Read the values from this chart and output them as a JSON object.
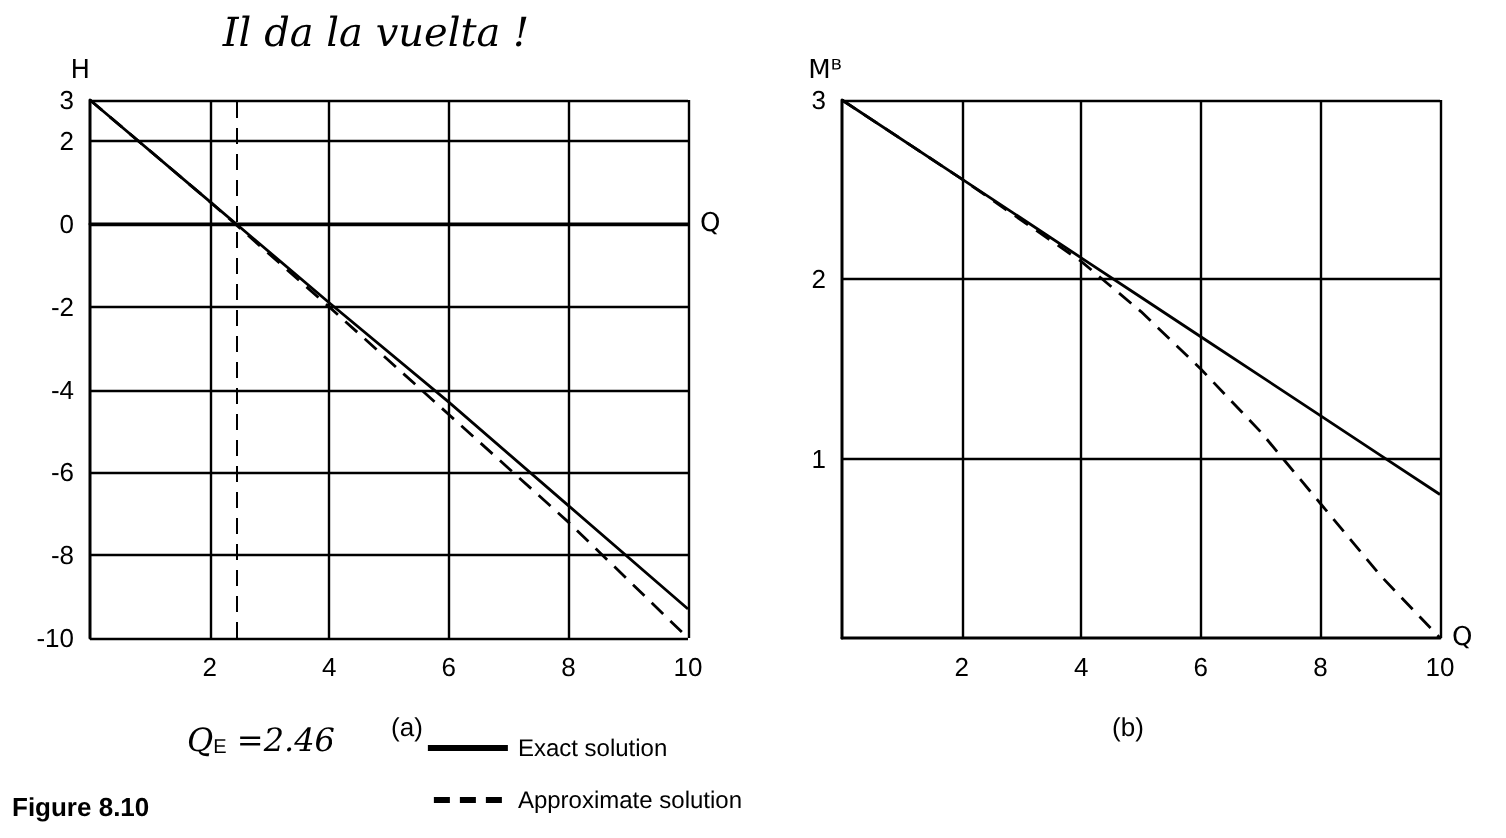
{
  "chart_data": [
    {
      "type": "line",
      "xlabel": "Q",
      "ylabel": "H",
      "x": [
        0,
        2,
        4,
        6,
        8,
        10
      ],
      "xlim": [
        0,
        10
      ],
      "xticks": [
        2,
        4,
        6,
        8,
        10
      ],
      "ylim": [
        -10,
        3
      ],
      "yticks": [
        -10,
        -8,
        -6,
        -4,
        -2,
        0,
        2,
        3
      ],
      "grid": true,
      "legend": "bottom right",
      "series": [
        {
          "name": "Exact solution",
          "color": "#000000",
          "line_style": "solid",
          "values": [
            3,
            0.55,
            -1.9,
            -4.3,
            -6.8,
            -9.3
          ]
        },
        {
          "name": "Approximate solution",
          "color": "#000000",
          "line_style": "dashed",
          "values": [
            3,
            0.55,
            -2,
            -4.6,
            -7.2,
            -10
          ]
        }
      ],
      "ref_lines": [
        {
          "axis": "x",
          "value": 2.46,
          "line_style": "dashed",
          "color": "#000000"
        }
      ],
      "annotations": [
        "Il da la vuelta !",
        "(a)",
        "Figure 8.10",
        {
          "text": "Q$_{E}$ =2.46",
          "x": 2.46,
          "y": -10
        }
      ]
    },
    {
      "type": "line",
      "xlabel": "Q",
      "ylabel": "Mᴮ",
      "x": [
        0,
        2,
        4,
        5,
        6,
        7,
        8,
        9,
        10
      ],
      "xlim": [
        0,
        10
      ],
      "xticks": [
        2,
        4,
        6,
        8,
        10
      ],
      "ylim": [
        0,
        3
      ],
      "yticks": [
        1,
        2,
        3
      ],
      "grid": true,
      "series": [
        {
          "color": "#000000",
          "line_style": "solid",
          "values": [
            3,
            2.56,
            2.12,
            1.9,
            1.68,
            1.46,
            1.24,
            1.02,
            0.8
          ]
        },
        {
          "color": "#000000",
          "line_style": "dashed",
          "values": [
            3,
            2.56,
            2.1,
            1.82,
            1.5,
            1.15,
            0.75,
            0.35,
            0
          ]
        }
      ],
      "annotations": [
        "(b)"
      ]
    }
  ]
}
